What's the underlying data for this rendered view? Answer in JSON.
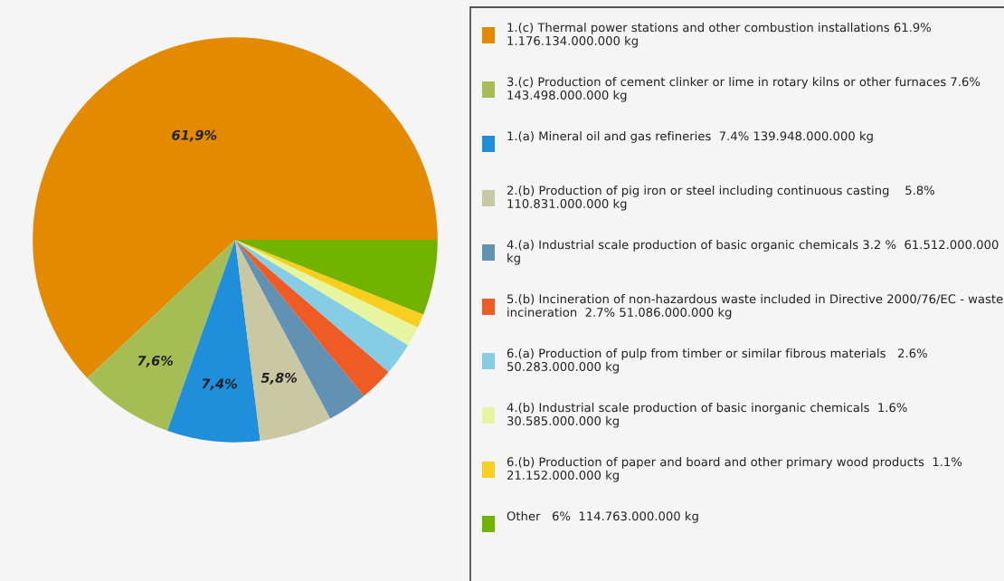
{
  "chart_data": {
    "type": "pie",
    "categories": [
      "1.(c) Thermal power stations and other combustion installations 61.9%  1.176.134.000.000 kg",
      "3.(c) Production of cement clinker or lime in rotary kilns or other furnaces 7.6%  143.498.000.000 kg",
      "1.(a) Mineral oil and gas refineries  7.4% 139.948.000.000 kg",
      "2.(b) Production of pig iron or steel including continuous casting    5.8%  110.831.000.000 kg",
      "4.(a) Industrial scale production of basic organic chemicals 3.2 %  61.512.000.000 kg",
      "5.(b) Incineration of non-hazardous waste included in Directive 2000/76/EC - waste incineration  2.7% 51.086.000.000 kg",
      "6.(a) Production of pulp from timber or similar fibrous materials   2.6% 50.283.000.000 kg",
      "4.(b) Industrial scale production of basic inorganic chemicals  1.6% 30.585.000.000 kg",
      "6.(b) Production of paper and board and other primary wood products  1.1% 21.152.000.000 kg",
      "Other   6%  114.763.000.000 kg"
    ],
    "values": [
      61.9,
      7.6,
      7.4,
      5.8,
      3.2,
      2.7,
      2.6,
      1.6,
      1.1,
      6
    ],
    "colors": [
      "#e38a00",
      "#a6bd55",
      "#1f8fdc",
      "#c9c8a2",
      "#6191b3",
      "#ef5b25",
      "#85cde5",
      "#e7f5a0",
      "#f9cf1f",
      "#71b300"
    ],
    "value_labels": [
      "61,9%",
      "7,6%",
      "7,4%",
      "5,8%",
      null,
      null,
      null,
      null,
      null,
      null
    ],
    "legend": "right"
  }
}
